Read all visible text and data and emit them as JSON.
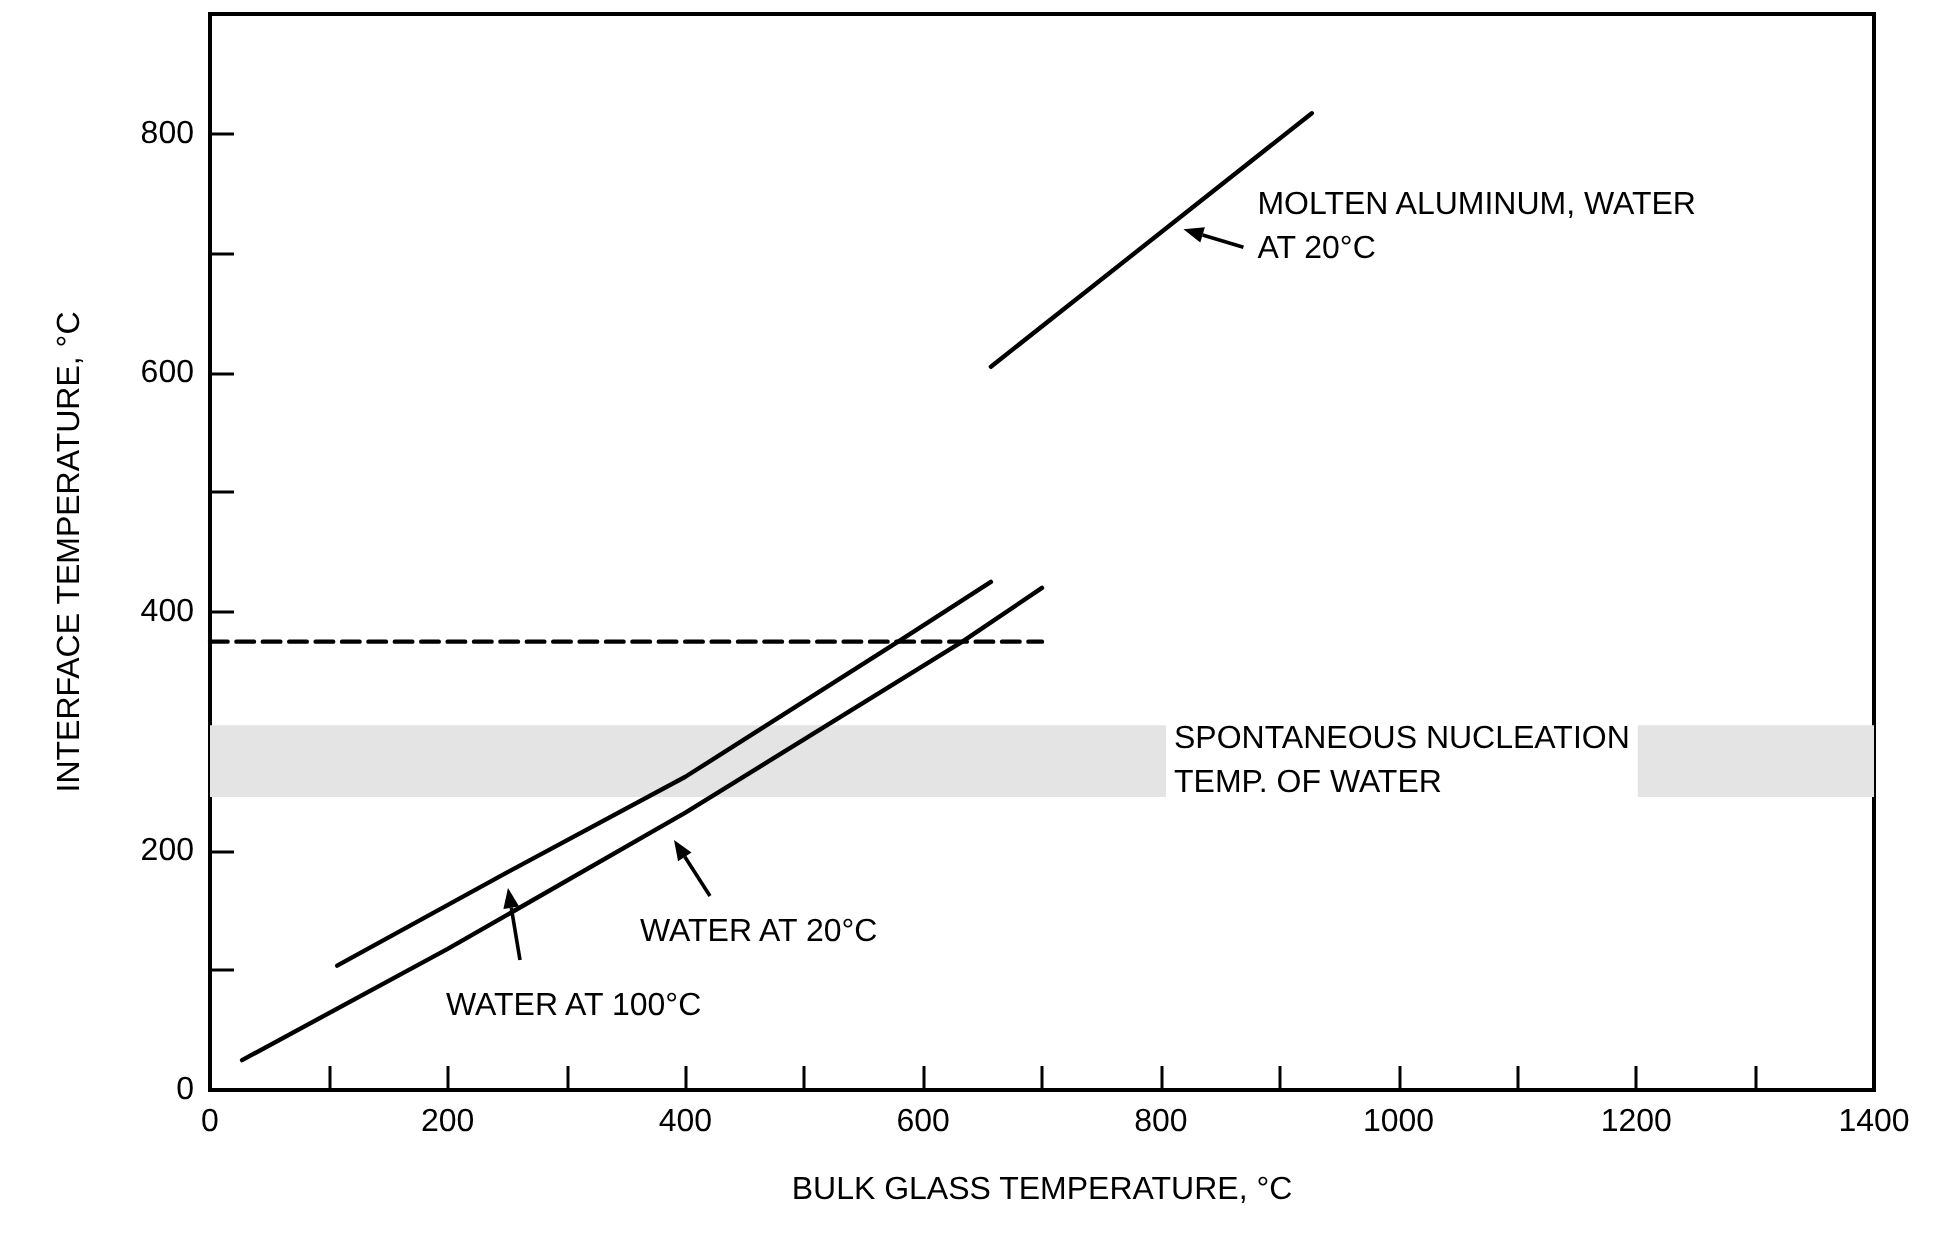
{
  "chart_data": {
    "type": "line",
    "xlabel": "BULK GLASS TEMPERATURE, °C",
    "ylabel": "INTERFACE TEMPERATURE, °C",
    "series": [
      {
        "color": "#000000",
        "x": [
          27,
          200,
          400,
          633,
          700
        ],
        "values": [
          25,
          118,
          232,
          375,
          420
        ]
      },
      {
        "color": "#000000",
        "x": [
          107,
          250,
          400,
          579,
          657
        ],
        "values": [
          104,
          182,
          262,
          375,
          425
        ]
      },
      {
        "color": "#000000",
        "x": [
          657,
          927
        ],
        "values": [
          605,
          817
        ]
      },
      {
        "color": "#000000",
        "x": [
          0,
          700
        ],
        "values": [
          375,
          375
        ],
        "line_style": "dashed"
      }
    ],
    "xlim": [
      0,
      1400
    ],
    "xticks": [
      0,
      {
        "value": 100,
        "label": null
      },
      200,
      {
        "value": 300,
        "label": null
      },
      400,
      {
        "value": 500,
        "label": null
      },
      600,
      {
        "value": 700,
        "label": null
      },
      800,
      {
        "value": 900,
        "label": null
      },
      1000,
      {
        "value": 1100,
        "label": null
      },
      1200,
      {
        "value": 1300,
        "label": null
      },
      1400
    ],
    "ylim": [
      0,
      900
    ],
    "yticks": [
      0,
      {
        "value": 100,
        "label": null
      },
      200,
      {
        "value": 300,
        "label": null
      },
      400,
      {
        "value": 500,
        "label": null
      },
      600,
      {
        "value": 700,
        "label": null
      },
      800
    ],
    "bands": [
      {
        "axis": "y",
        "from": 245,
        "to": 305,
        "label": "SPONTANEOUS NUCLEATION\nTEMP. OF WATER",
        "color": "#e4e4e4"
      }
    ],
    "annotations": [
      "WATER AT 20°C",
      "WATER AT 100°C",
      {
        "text": "MOLTEN ALUMINUM, WATER\nAT 20°C",
        "x": 819,
        "y": 720
      }
    ],
    "grid": false,
    "marker": "none",
    "line_style": "solid"
  }
}
